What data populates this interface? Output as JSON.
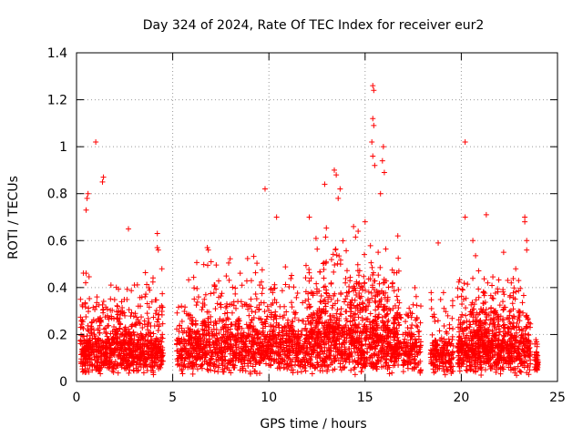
{
  "chart_data": {
    "type": "scatter",
    "title": "Day 324 of 2024, Rate Of TEC Index for receiver eur2",
    "xlabel": "GPS time / hours",
    "ylabel": "ROTI / TECUs",
    "xlim": [
      0,
      25
    ],
    "ylim": [
      0,
      1.4
    ],
    "xticks": [
      0,
      5,
      10,
      15,
      20,
      25
    ],
    "xtick_labels": [
      "0",
      "5",
      "10",
      "15",
      "20",
      "25"
    ],
    "yticks": [
      0,
      0.2,
      0.4,
      0.6,
      0.8,
      1,
      1.2,
      1.4
    ],
    "ytick_labels": [
      "0",
      "0.2",
      "0.4",
      "0.6",
      "0.8",
      "1",
      "1.2",
      "1.4"
    ],
    "grid": true,
    "marker": "+",
    "color": "#ff0000",
    "highlight_points": [
      {
        "x": 1.0,
        "y": 1.02
      },
      {
        "x": 1.4,
        "y": 0.87
      },
      {
        "x": 1.35,
        "y": 0.85
      },
      {
        "x": 0.6,
        "y": 0.8
      },
      {
        "x": 0.55,
        "y": 0.78
      },
      {
        "x": 0.5,
        "y": 0.73
      },
      {
        "x": 2.7,
        "y": 0.65
      },
      {
        "x": 4.2,
        "y": 0.63
      },
      {
        "x": 9.8,
        "y": 0.82
      },
      {
        "x": 10.4,
        "y": 0.7
      },
      {
        "x": 12.1,
        "y": 0.7
      },
      {
        "x": 12.9,
        "y": 0.84
      },
      {
        "x": 13.4,
        "y": 0.9
      },
      {
        "x": 13.5,
        "y": 0.88
      },
      {
        "x": 13.7,
        "y": 0.82
      },
      {
        "x": 13.6,
        "y": 0.78
      },
      {
        "x": 15.4,
        "y": 1.26
      },
      {
        "x": 15.45,
        "y": 1.24
      },
      {
        "x": 15.4,
        "y": 1.12
      },
      {
        "x": 15.45,
        "y": 1.09
      },
      {
        "x": 15.35,
        "y": 1.02
      },
      {
        "x": 15.4,
        "y": 0.96
      },
      {
        "x": 15.5,
        "y": 0.92
      },
      {
        "x": 15.95,
        "y": 1.0
      },
      {
        "x": 15.9,
        "y": 0.94
      },
      {
        "x": 16.0,
        "y": 0.89
      },
      {
        "x": 15.8,
        "y": 0.8
      },
      {
        "x": 20.2,
        "y": 1.02
      },
      {
        "x": 20.2,
        "y": 0.7
      },
      {
        "x": 21.3,
        "y": 0.71
      },
      {
        "x": 23.3,
        "y": 0.7
      },
      {
        "x": 23.3,
        "y": 0.68
      },
      {
        "x": 23.4,
        "y": 0.6
      },
      {
        "x": 23.4,
        "y": 0.56
      },
      {
        "x": 20.6,
        "y": 0.6
      },
      {
        "x": 18.8,
        "y": 0.59
      },
      {
        "x": 22.2,
        "y": 0.55
      },
      {
        "x": 6.8,
        "y": 0.57
      },
      {
        "x": 6.85,
        "y": 0.56
      },
      {
        "x": 4.2,
        "y": 0.57
      },
      {
        "x": 4.25,
        "y": 0.56
      },
      {
        "x": 14.4,
        "y": 0.66
      },
      {
        "x": 15.0,
        "y": 0.68
      },
      {
        "x": 16.7,
        "y": 0.62
      }
    ],
    "segments": [
      {
        "x_start": 0.2,
        "x_end": 4.5,
        "base": 0.12,
        "spread": 0.38,
        "count": 900
      },
      {
        "x_start": 5.2,
        "x_end": 5.8,
        "base": 0.1,
        "spread": 0.3,
        "count": 80
      },
      {
        "x_start": 5.8,
        "x_end": 12.0,
        "base": 0.14,
        "spread": 0.42,
        "count": 1100
      },
      {
        "x_start": 12.0,
        "x_end": 16.8,
        "base": 0.18,
        "spread": 0.5,
        "count": 1100
      },
      {
        "x_start": 16.8,
        "x_end": 17.9,
        "base": 0.12,
        "spread": 0.32,
        "count": 150
      },
      {
        "x_start": 18.4,
        "x_end": 19.6,
        "base": 0.08,
        "spread": 0.3,
        "count": 180
      },
      {
        "x_start": 19.8,
        "x_end": 23.6,
        "base": 0.13,
        "spread": 0.4,
        "count": 850
      },
      {
        "x_start": 23.8,
        "x_end": 24.0,
        "base": 0.08,
        "spread": 0.12,
        "count": 40
      }
    ]
  }
}
